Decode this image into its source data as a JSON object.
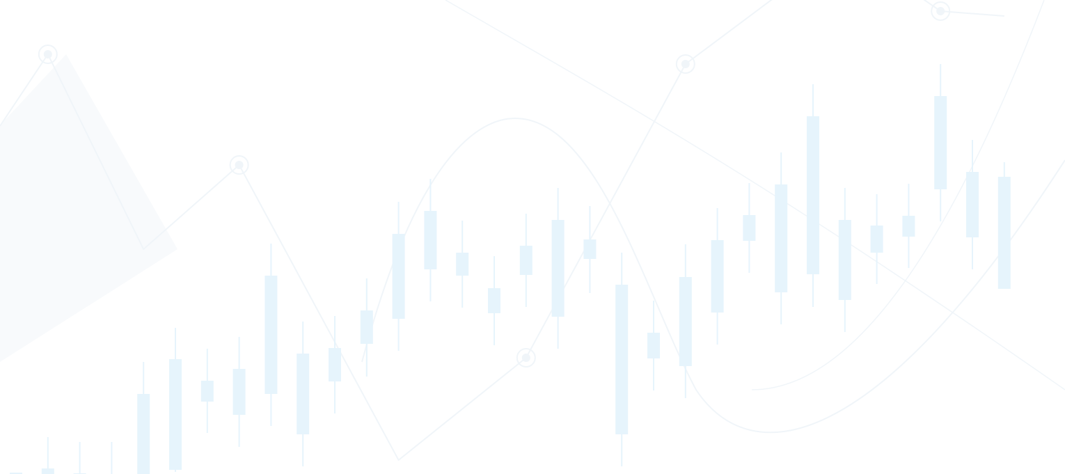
{
  "background": {
    "kind": "decorative-financial-chart-watermark",
    "colors": {
      "page": "#ffffff",
      "candle": "#e6f4fc",
      "line": "#f0f5f9",
      "node": "#f0f5f9",
      "area": "#f7fafc"
    },
    "candles": [
      {
        "open": 2,
        "close": 0,
        "high": 2,
        "low": 0
      },
      {
        "open": 8,
        "close": 0,
        "high": 53,
        "low": 0
      },
      {
        "open": 0,
        "close": 1,
        "high": 46,
        "low": 0
      },
      {
        "open": 0,
        "close": 0,
        "high": 46,
        "low": 0
      },
      {
        "open": 115,
        "close": 0,
        "high": 161,
        "low": 0
      },
      {
        "open": 165,
        "close": 6,
        "high": 210,
        "low": 3
      },
      {
        "open": 134,
        "close": 104,
        "high": 180,
        "low": 59
      },
      {
        "open": 151,
        "close": 85,
        "high": 197,
        "low": 39
      },
      {
        "open": 285,
        "close": 115,
        "high": 331,
        "low": 69
      },
      {
        "open": 57,
        "close": 173,
        "high": 219,
        "low": 11
      },
      {
        "open": 133,
        "close": 181,
        "high": 227,
        "low": 87
      },
      {
        "open": 187,
        "close": 235,
        "high": 281,
        "low": 140
      },
      {
        "open": 223,
        "close": 345,
        "high": 391,
        "low": 177
      },
      {
        "open": 294,
        "close": 378,
        "high": 424,
        "low": 248
      },
      {
        "open": 285,
        "close": 318,
        "high": 364,
        "low": 239
      },
      {
        "open": 231,
        "close": 267,
        "high": 313,
        "low": 185
      },
      {
        "open": 286,
        "close": 328,
        "high": 374,
        "low": 240
      },
      {
        "open": 226,
        "close": 365,
        "high": 411,
        "low": 180
      },
      {
        "open": 309,
        "close": 337,
        "high": 385,
        "low": 260
      },
      {
        "open": 272,
        "close": 57,
        "high": 318,
        "low": 11
      },
      {
        "open": 166,
        "close": 203,
        "high": 249,
        "low": 120
      },
      {
        "open": 155,
        "close": 283,
        "high": 330,
        "low": 109
      },
      {
        "open": 232,
        "close": 336,
        "high": 382,
        "low": 186
      },
      {
        "open": 335,
        "close": 372,
        "high": 418,
        "low": 289
      },
      {
        "open": 261,
        "close": 416,
        "high": 462,
        "low": 215
      },
      {
        "open": 287,
        "close": 514,
        "high": 560,
        "low": 240
      },
      {
        "open": 250,
        "close": 365,
        "high": 411,
        "low": 204
      },
      {
        "open": 318,
        "close": 357,
        "high": 402,
        "low": 273
      },
      {
        "open": 341,
        "close": 371,
        "high": 417,
        "low": 296
      },
      {
        "open": 409,
        "close": 543,
        "high": 589,
        "low": 363
      },
      {
        "open": 340,
        "close": 434,
        "high": 480,
        "low": 294
      },
      {
        "open": 266,
        "close": 427,
        "high": 448,
        "low": 266
      }
    ],
    "trendline": [
      {
        "t": 0,
        "v": 500
      },
      {
        "t": 1,
        "v": 603
      },
      {
        "t": 4,
        "v": 323
      },
      {
        "t": 7,
        "v": 444
      },
      {
        "t": 12,
        "v": 20
      },
      {
        "t": 16,
        "v": 167
      },
      {
        "t": 21,
        "v": 589
      },
      {
        "t": 26,
        "v": 760
      },
      {
        "t": 29,
        "v": 665
      },
      {
        "t": 31,
        "v": 658
      }
    ],
    "nodes": [
      1,
      3,
      5,
      6,
      8
    ]
  }
}
